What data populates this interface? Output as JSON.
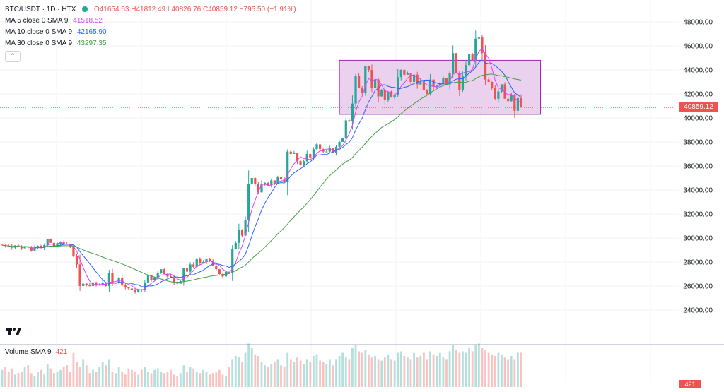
{
  "header": {
    "symbol": "BTC/USDT · 1D · HTX",
    "ohlc": "O41654.63 H41812.49 L40826.76 C40859.12 −795.50 (−1.91%)"
  },
  "indicators": [
    {
      "label": "MA 5 close 0 SMA 9",
      "value": "41518.52",
      "color": "#e040fb"
    },
    {
      "label": "MA 10 close 0 SMA 9",
      "value": "42165.90",
      "color": "#2962ff"
    },
    {
      "label": "MA 30 close 0 SMA 9",
      "value": "43297.35",
      "color": "#43a047"
    }
  ],
  "collapse_icon": "chevron-up-icon",
  "volume": {
    "label": "Volume SMA 9",
    "value": "421",
    "axis_label": "421"
  },
  "colors": {
    "up": "#26a69a",
    "down": "#ef5350",
    "box_fill": "#e1bee7",
    "box_stroke": "#9c27b0",
    "ma5": "#e040fb",
    "ma10": "#2962ff",
    "ma30": "#43a047",
    "grid": "#f0f3fa",
    "text": "#131722"
  },
  "chart_data": {
    "type": "candlestick",
    "y_axis": {
      "ticks": [
        24000,
        26000,
        28000,
        30000,
        32000,
        34000,
        36000,
        38000,
        40000,
        42000,
        44000,
        46000,
        48000
      ],
      "tick_labels": [
        "24000.00",
        "26000.00",
        "28000.00",
        "30000.00",
        "32000.00",
        "34000.00",
        "36000.00",
        "38000.00",
        "40000.00",
        "42000.00",
        "44000.00",
        "46000.00",
        "48000.00"
      ],
      "range": [
        21500,
        50500
      ]
    },
    "last_price": 40859.12,
    "last_price_label": "40859.12",
    "grid": true,
    "highlight_box": {
      "price_low": 40300,
      "price_high": 44800,
      "candle_start": 104,
      "candle_end": 166
    },
    "closes": [
      29400,
      29350,
      29300,
      29200,
      29380,
      29250,
      29150,
      29300,
      29220,
      28950,
      29200,
      29350,
      29180,
      29400,
      29900,
      29600,
      29300,
      29500,
      29700,
      29500,
      29450,
      29300,
      28500,
      27800,
      26000,
      26200,
      26100,
      26000,
      26300,
      26050,
      26100,
      26300,
      26000,
      27100,
      26200,
      26300,
      26700,
      26050,
      25900,
      25800,
      25700,
      25500,
      25700,
      25650,
      26300,
      26900,
      26500,
      26700,
      27100,
      27400,
      27000,
      26800,
      26700,
      26300,
      26200,
      26400,
      27500,
      27200,
      27800,
      27600,
      28300,
      27900,
      28000,
      28300,
      28100,
      27700,
      27400,
      27000,
      26800,
      27200,
      27100,
      29100,
      29600,
      30700,
      30200,
      31500,
      34500,
      35000,
      34500,
      33800,
      34500,
      34600,
      34400,
      34800,
      34500,
      35100,
      34900,
      34700,
      37200,
      37000,
      37100,
      36400,
      36100,
      36400,
      37000,
      36700,
      37400,
      37800,
      37400,
      37200,
      37200,
      37500,
      37100,
      37600,
      38000,
      38300,
      39800,
      39700,
      41200,
      43500,
      42500,
      42100,
      44300,
      44000,
      42500,
      43200,
      41800,
      42300,
      41500,
      42200,
      41700,
      41900,
      43400,
      44000,
      43600,
      43700,
      43000,
      43600,
      42800,
      43100,
      42300,
      42000,
      43200,
      42600,
      42700,
      42900,
      43300,
      42800,
      43700,
      45400,
      43700,
      42300,
      43500,
      44400,
      45300,
      44800,
      46600,
      46700,
      45400,
      43200,
      43000,
      42500,
      41600,
      42200,
      42800,
      41600,
      41400,
      41900,
      40600,
      41654.63,
      40859.12
    ],
    "volumes": [
      310,
      330,
      300,
      320,
      280,
      290,
      300,
      330,
      340,
      290,
      270,
      300,
      310,
      280,
      350,
      320,
      290,
      300,
      310,
      330,
      340,
      300,
      420,
      360,
      330,
      380,
      340,
      290,
      310,
      300,
      330,
      360,
      340,
      380,
      300,
      290,
      330,
      300,
      280,
      320,
      310,
      300,
      280,
      310,
      330,
      300,
      290,
      310,
      320,
      300,
      290,
      300,
      310,
      280,
      270,
      290,
      340,
      300,
      330,
      320,
      300,
      290,
      310,
      300,
      280,
      290,
      300,
      310,
      280,
      270,
      330,
      380,
      400,
      390,
      360,
      420,
      480,
      450,
      410,
      400,
      360,
      340,
      330,
      350,
      360,
      380,
      340,
      330,
      420,
      380,
      360,
      390,
      370,
      350,
      380,
      360,
      400,
      410,
      370,
      360,
      350,
      380,
      340,
      380,
      400,
      420,
      390,
      380,
      450,
      470,
      430,
      420,
      440,
      410,
      390,
      400,
      380,
      370,
      390,
      410,
      380,
      370,
      420,
      430,
      400,
      390,
      380,
      420,
      390,
      400,
      420,
      380,
      430,
      410,
      400,
      420,
      390,
      380,
      430,
      470,
      440,
      420,
      430,
      420,
      450,
      430,
      470,
      480,
      450,
      440,
      420,
      410,
      400,
      420,
      410,
      390,
      380,
      400,
      380,
      421,
      421
    ]
  }
}
